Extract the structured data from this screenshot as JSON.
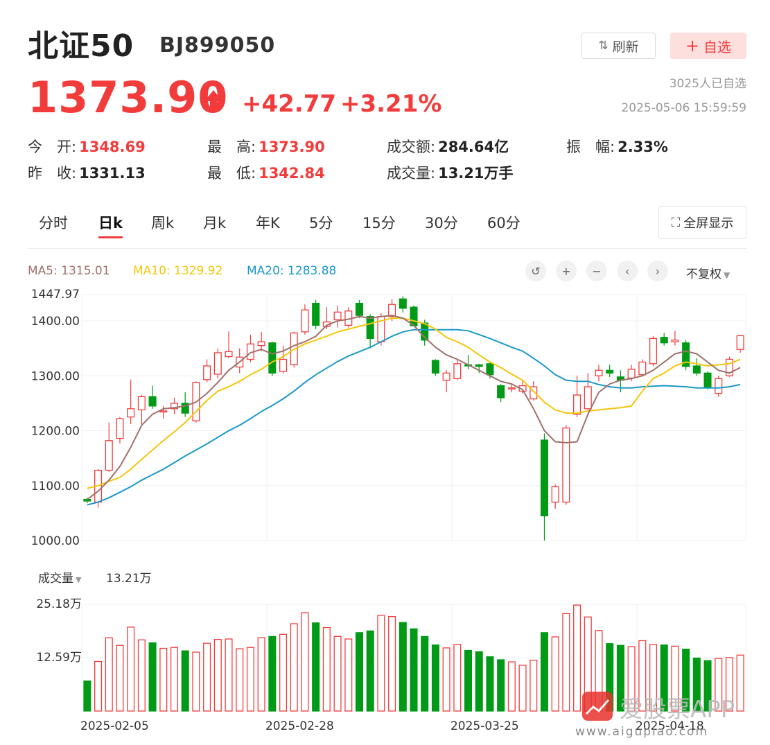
{
  "header": {
    "name": "北证50",
    "code": "BJ899050",
    "refresh_label": "刷新",
    "favorite_label": "自选",
    "favorite_count": "3025人已自选",
    "timestamp": "2025-05-06 15:59:59"
  },
  "quote": {
    "price": "1373.90",
    "change": "+42.77",
    "change_pct": "+3.21%"
  },
  "stats": {
    "open_label": "今　开:",
    "open": "1348.69",
    "high_label": "最　高:",
    "high": "1373.90",
    "amount_label": "成交额:",
    "amount": "284.64亿",
    "amplitude_label": "振　幅:",
    "amplitude": "2.33%",
    "prev_close_label": "昨　收:",
    "prev_close": "1331.13",
    "low_label": "最　低:",
    "low": "1342.84",
    "volume_label": "成交量:",
    "volume": "13.21万手"
  },
  "tabs": [
    "分时",
    "日k",
    "周k",
    "月k",
    "年K",
    "5分",
    "15分",
    "30分",
    "60分"
  ],
  "active_tab": 1,
  "fullscreen_label": "全屏显示",
  "ma_legend": {
    "ma5": "MA5: 1315.01",
    "ma10": "MA10: 1329.92",
    "ma20": "MA20: 1283.88"
  },
  "adjust_label": "不复权",
  "volume_panel": {
    "label": "成交量",
    "current": "13.21万"
  },
  "watermark": {
    "text": "爱股票APP",
    "url": "www.aigupiao.com"
  },
  "colors": {
    "up": "#f23c3c",
    "down": "#009a16",
    "ma5": "#a0706a",
    "ma10": "#f5c60a",
    "ma20": "#1a98c9"
  },
  "chart_data": {
    "type": "candlestick",
    "price_axis": {
      "top_label": "1447.97",
      "ticks": [
        "1400.00",
        "1300.00",
        "1200.00",
        "1100.00",
        "1000.00"
      ],
      "ylim": [
        1000,
        1447.97
      ]
    },
    "volume_axis": {
      "ticks": [
        "25.18万",
        "12.59万"
      ],
      "ylim": [
        0,
        25.18
      ]
    },
    "x_labels": [
      {
        "label": "2025-02-05",
        "index": 0
      },
      {
        "label": "2025-02-28",
        "index": 17
      },
      {
        "label": "2025-03-25",
        "index": 34
      },
      {
        "label": "2025-04-18",
        "index": 51
      }
    ],
    "candles": [
      [
        1075,
        1072,
        1078,
        1068,
        7.1
      ],
      [
        1070,
        1128,
        1130,
        1060,
        11.7
      ],
      [
        1128,
        1182,
        1215,
        1125,
        17.3
      ],
      [
        1186,
        1222,
        1225,
        1177,
        15.5
      ],
      [
        1225,
        1240,
        1293,
        1212,
        19.8
      ],
      [
        1238,
        1262,
        1265,
        1212,
        16.8
      ],
      [
        1262,
        1245,
        1282,
        1240,
        16.1
      ],
      [
        1235,
        1236,
        1245,
        1222,
        14.8
      ],
      [
        1240,
        1250,
        1260,
        1230,
        15.0
      ],
      [
        1250,
        1232,
        1270,
        1225,
        14.2
      ],
      [
        1218,
        1288,
        1290,
        1215,
        13.9
      ],
      [
        1293,
        1318,
        1330,
        1288,
        16.0
      ],
      [
        1303,
        1342,
        1350,
        1295,
        16.9
      ],
      [
        1335,
        1344,
        1381,
        1332,
        17.0
      ],
      [
        1316,
        1334,
        1350,
        1305,
        14.7
      ],
      [
        1330,
        1358,
        1375,
        1325,
        15.0
      ],
      [
        1355,
        1362,
        1380,
        1345,
        17.3
      ],
      [
        1360,
        1305,
        1362,
        1300,
        17.6
      ],
      [
        1308,
        1330,
        1355,
        1305,
        18.1
      ],
      [
        1320,
        1378,
        1380,
        1315,
        20.6
      ],
      [
        1380,
        1420,
        1430,
        1375,
        23.2
      ],
      [
        1432,
        1392,
        1438,
        1385,
        20.8
      ],
      [
        1390,
        1398,
        1425,
        1385,
        19.7
      ],
      [
        1402,
        1416,
        1428,
        1388,
        17.6
      ],
      [
        1392,
        1418,
        1425,
        1388,
        17.0
      ],
      [
        1432,
        1410,
        1438,
        1405,
        18.5
      ],
      [
        1408,
        1368,
        1412,
        1350,
        18.9
      ],
      [
        1362,
        1408,
        1414,
        1355,
        22.6
      ],
      [
        1408,
        1430,
        1440,
        1400,
        22.3
      ],
      [
        1440,
        1423,
        1445,
        1415,
        20.9
      ],
      [
        1425,
        1391,
        1428,
        1390,
        19.4
      ],
      [
        1396,
        1365,
        1402,
        1355,
        17.6
      ],
      [
        1328,
        1305,
        1330,
        1300,
        15.6
      ],
      [
        1292,
        1305,
        1310,
        1270,
        14.9
      ],
      [
        1295,
        1322,
        1328,
        1292,
        15.7
      ],
      [
        1320,
        1318,
        1338,
        1312,
        14.3
      ],
      [
        1320,
        1317,
        1322,
        1305,
        14.0
      ],
      [
        1322,
        1302,
        1325,
        1295,
        12.8
      ],
      [
        1282,
        1260,
        1285,
        1252,
        12.1
      ],
      [
        1276,
        1278,
        1285,
        1270,
        11.6
      ],
      [
        1272,
        1282,
        1290,
        1268,
        10.8
      ],
      [
        1258,
        1280,
        1290,
        1255,
        12.0
      ],
      [
        1183,
        1045,
        1195,
        1000,
        18.5
      ],
      [
        1070,
        1098,
        1102,
        1058,
        17.5
      ],
      [
        1070,
        1205,
        1210,
        1065,
        23.0
      ],
      [
        1230,
        1265,
        1300,
        1225,
        25.0
      ],
      [
        1240,
        1280,
        1305,
        1238,
        22.2
      ],
      [
        1300,
        1310,
        1320,
        1290,
        19.0
      ],
      [
        1310,
        1305,
        1320,
        1298,
        15.9
      ],
      [
        1298,
        1292,
        1310,
        1270,
        15.5
      ],
      [
        1296,
        1312,
        1320,
        1290,
        15.2
      ],
      [
        1302,
        1325,
        1330,
        1300,
        16.6
      ],
      [
        1322,
        1368,
        1372,
        1318,
        15.7
      ],
      [
        1370,
        1360,
        1378,
        1355,
        15.6
      ],
      [
        1362,
        1365,
        1382,
        1355,
        15.3
      ],
      [
        1360,
        1317,
        1365,
        1310,
        14.6
      ],
      [
        1318,
        1305,
        1332,
        1300,
        12.5
      ],
      [
        1305,
        1278,
        1308,
        1275,
        11.9
      ],
      [
        1268,
        1295,
        1300,
        1262,
        12.4
      ],
      [
        1300,
        1330,
        1335,
        1298,
        12.6
      ],
      [
        1348,
        1373,
        1374,
        1342,
        13.2
      ]
    ],
    "ma5": [
      1075,
      1090,
      1110,
      1135,
      1170,
      1210,
      1230,
      1240,
      1242,
      1245,
      1252,
      1268,
      1288,
      1310,
      1325,
      1342,
      1348,
      1340,
      1345,
      1355,
      1362,
      1372,
      1392,
      1400,
      1403,
      1408,
      1405,
      1408,
      1410,
      1405,
      1392,
      1370,
      1352,
      1338,
      1330,
      1320,
      1310,
      1300,
      1290,
      1285,
      1275,
      1240,
      1200,
      1180,
      1178,
      1180,
      1230,
      1270,
      1285,
      1292,
      1295,
      1300,
      1310,
      1325,
      1340,
      1345,
      1340,
      1325,
      1310,
      1305,
      1315
    ],
    "ma10": [
      1095,
      1100,
      1108,
      1115,
      1130,
      1148,
      1165,
      1182,
      1198,
      1215,
      1235,
      1255,
      1272,
      1280,
      1290,
      1302,
      1312,
      1325,
      1335,
      1348,
      1358,
      1365,
      1372,
      1380,
      1385,
      1390,
      1395,
      1400,
      1405,
      1405,
      1400,
      1395,
      1385,
      1370,
      1362,
      1352,
      1338,
      1325,
      1315,
      1303,
      1292,
      1272,
      1252,
      1238,
      1232,
      1232,
      1236,
      1238,
      1240,
      1242,
      1245,
      1272,
      1295,
      1305,
      1318,
      1325,
      1322,
      1318,
      1320,
      1322,
      1330
    ],
    "ma20": [
      1065,
      1070,
      1078,
      1088,
      1098,
      1110,
      1120,
      1130,
      1142,
      1154,
      1165,
      1176,
      1188,
      1200,
      1210,
      1222,
      1235,
      1246,
      1258,
      1272,
      1288,
      1302,
      1314,
      1326,
      1336,
      1344,
      1352,
      1362,
      1372,
      1380,
      1384,
      1384,
      1384,
      1384,
      1384,
      1382,
      1375,
      1368,
      1360,
      1352,
      1345,
      1332,
      1318,
      1302,
      1292,
      1290,
      1290,
      1284,
      1280,
      1278,
      1278,
      1280,
      1281,
      1282,
      1281,
      1280,
      1278,
      1278,
      1278,
      1280,
      1284
    ]
  }
}
